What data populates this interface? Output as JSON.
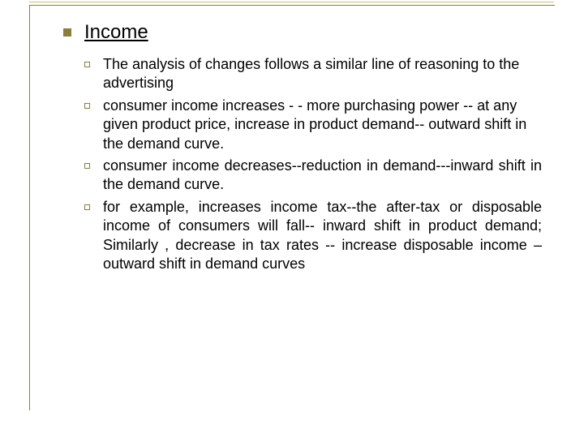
{
  "slide": {
    "heading": "Income",
    "heading_fontsize": 24,
    "heading_underline": true,
    "body_fontsize": 18,
    "bullet_main_color": "#8b7d3a",
    "bullet_sub_border_color": "#8b7d3a",
    "frame_border_color": "#8b7d3a",
    "background_color": "#ffffff",
    "text_color": "#000000",
    "items": [
      {
        "text": "The analysis of changes follows a similar line of reasoning to the advertising",
        "justify": false
      },
      {
        "text": " consumer income increases - - more purchasing power -- at any given product price, increase in product demand-- outward shift in the demand curve.",
        "justify": false
      },
      {
        "text": " consumer income decreases--reduction in demand---inward shift in the demand curve.",
        "justify": true
      },
      {
        "text": " for example, increases income tax--the after-tax or disposable income of consumers  will fall-- inward shift in product demand; Similarly , decrease in tax rates -- increase disposable income – outward shift in  demand curves",
        "justify": true
      }
    ]
  }
}
